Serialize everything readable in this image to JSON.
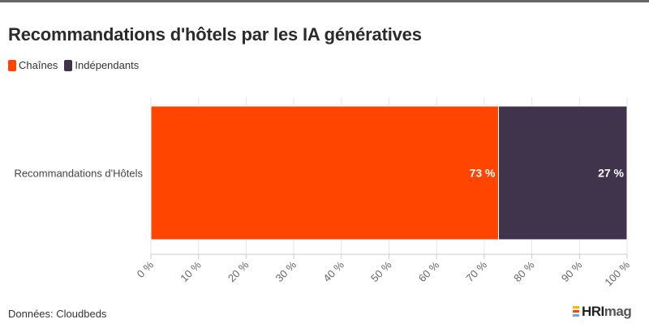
{
  "title": "Recommandations d'hôtels par les IA génératives",
  "source": "Données: Cloudbeds",
  "brand": {
    "bold": "HRI",
    "light": "mag"
  },
  "colors": {
    "chaines": "#ff4500",
    "independants": "#40344d",
    "grid": "#e6e6e6",
    "axis": "#cccccc"
  },
  "chart_data": {
    "type": "bar",
    "orientation": "horizontal",
    "stacked": true,
    "categories": [
      "Recommandations d'Hôtels"
    ],
    "series": [
      {
        "name": "Chaînes",
        "values": [
          73
        ],
        "labels": [
          "73 %"
        ],
        "color": "#ff4500"
      },
      {
        "name": "Indépendants",
        "values": [
          27
        ],
        "labels": [
          "27 %"
        ],
        "color": "#40344d"
      }
    ],
    "xlim": [
      0,
      100
    ],
    "xticks": [
      "0 %",
      "10 %",
      "20 %",
      "30 %",
      "40 %",
      "50 %",
      "60 %",
      "70 %",
      "80 %",
      "90 %",
      "100 %"
    ],
    "legend_position": "top-left",
    "grid": true
  }
}
